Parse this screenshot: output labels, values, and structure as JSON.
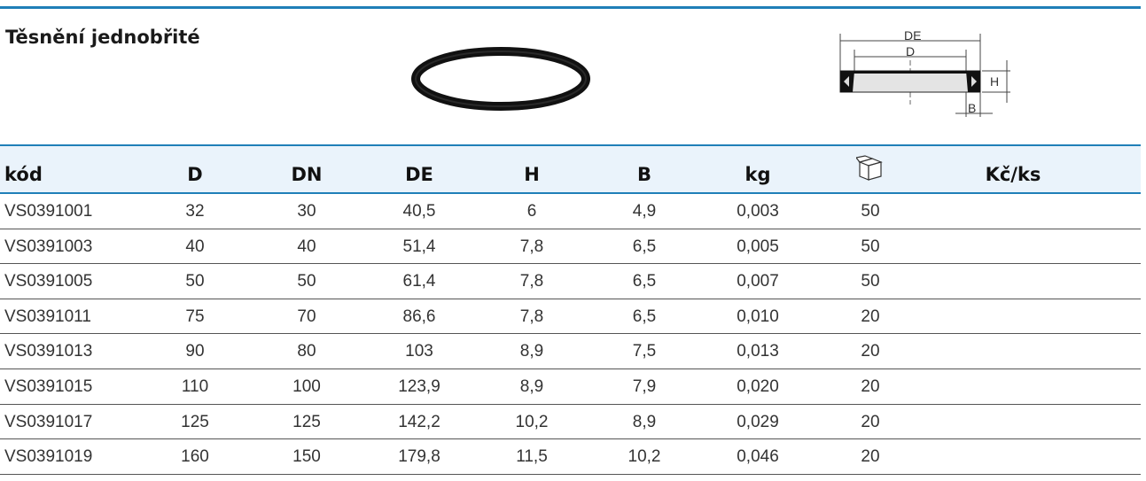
{
  "title": "Těsnění jednobřité",
  "diagram": {
    "de_label": "DE",
    "d_label": "D",
    "h_label": "H",
    "b_label": "B"
  },
  "table": {
    "headers": [
      "kód",
      "D",
      "DN",
      "DE",
      "H",
      "B",
      "kg",
      "Kč/ks"
    ],
    "package_icon": "box-icon",
    "rows": [
      [
        "VS0391001",
        "32",
        "30",
        "40,5",
        "6",
        "4,9",
        "0,003",
        "50",
        ""
      ],
      [
        "VS0391003",
        "40",
        "40",
        "51,4",
        "7,8",
        "6,5",
        "0,005",
        "50",
        ""
      ],
      [
        "VS0391005",
        "50",
        "50",
        "61,4",
        "7,8",
        "6,5",
        "0,007",
        "50",
        ""
      ],
      [
        "VS0391011",
        "75",
        "70",
        "86,6",
        "7,8",
        "6,5",
        "0,010",
        "20",
        ""
      ],
      [
        "VS0391013",
        "90",
        "80",
        "103",
        "8,9",
        "7,5",
        "0,013",
        "20",
        ""
      ],
      [
        "VS0391015",
        "110",
        "100",
        "123,9",
        "8,9",
        "7,9",
        "0,020",
        "20",
        ""
      ],
      [
        "VS0391017",
        "125",
        "125",
        "142,2",
        "10,2",
        "8,9",
        "0,029",
        "20",
        ""
      ],
      [
        "VS0391019",
        "160",
        "150",
        "179,8",
        "11,5",
        "10,2",
        "0,046",
        "20",
        ""
      ]
    ]
  },
  "colors": {
    "accent": "#1f7fb8",
    "header_bg": "#eaf3fb"
  }
}
